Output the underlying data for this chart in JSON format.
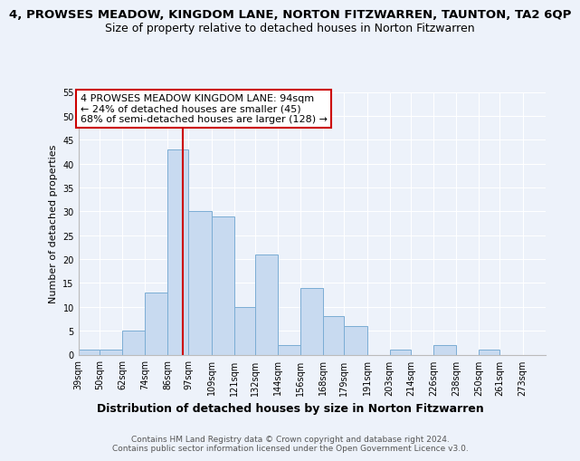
{
  "title_main": "4, PROWSES MEADOW, KINGDOM LANE, NORTON FITZWARREN, TAUNTON, TA2 6QP",
  "title_sub": "Size of property relative to detached houses in Norton Fitzwarren",
  "xlabel": "Distribution of detached houses by size in Norton Fitzwarren",
  "ylabel": "Number of detached properties",
  "bin_labels": [
    "39sqm",
    "50sqm",
    "62sqm",
    "74sqm",
    "86sqm",
    "97sqm",
    "109sqm",
    "121sqm",
    "132sqm",
    "144sqm",
    "156sqm",
    "168sqm",
    "179sqm",
    "191sqm",
    "203sqm",
    "214sqm",
    "226sqm",
    "238sqm",
    "250sqm",
    "261sqm",
    "273sqm"
  ],
  "bin_values": [
    1,
    1,
    5,
    13,
    43,
    30,
    29,
    10,
    21,
    2,
    14,
    8,
    6,
    0,
    1,
    0,
    2,
    0,
    1,
    0,
    0
  ],
  "bin_edges": [
    39,
    50,
    62,
    74,
    86,
    97,
    109,
    121,
    132,
    144,
    156,
    168,
    179,
    191,
    203,
    214,
    226,
    238,
    250,
    261,
    273,
    285
  ],
  "bar_color": "#c8daf0",
  "bar_edgecolor": "#7badd4",
  "property_line_x": 94,
  "property_line_color": "#cc0000",
  "ylim": [
    0,
    55
  ],
  "yticks": [
    0,
    5,
    10,
    15,
    20,
    25,
    30,
    35,
    40,
    45,
    50,
    55
  ],
  "annotation_text": "4 PROWSES MEADOW KINGDOM LANE: 94sqm\n← 24% of detached houses are smaller (45)\n68% of semi-detached houses are larger (128) →",
  "annotation_box_edgecolor": "#cc0000",
  "footer_text": "Contains HM Land Registry data © Crown copyright and database right 2024.\nContains public sector information licensed under the Open Government Licence v3.0.",
  "background_color": "#edf2fa",
  "grid_color": "#ffffff",
  "title_main_fontsize": 9.5,
  "title_sub_fontsize": 9,
  "xlabel_fontsize": 9,
  "ylabel_fontsize": 8,
  "tick_fontsize": 7,
  "annotation_fontsize": 8,
  "footer_fontsize": 6.5
}
